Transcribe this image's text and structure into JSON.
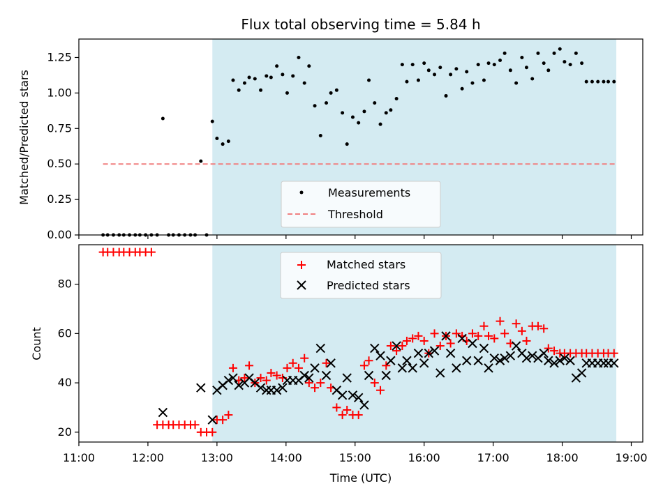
{
  "chart_data": [
    {
      "type": "scatter",
      "title": "Flux total observing time = 5.84 h",
      "xlabel": "",
      "ylabel": "Matched/Predicted stars",
      "xlim": [
        "11:00",
        "19:10"
      ],
      "ylim": [
        0,
        1.38
      ],
      "yticks": [
        "0.00",
        "0.25",
        "0.50",
        "0.75",
        "1.00",
        "1.25"
      ],
      "ytick_values": [
        0,
        0.25,
        0.5,
        0.75,
        1.0,
        1.25
      ],
      "shaded_span": {
        "start": "12:56",
        "end": "18:47",
        "color": "#d4ebf2"
      },
      "legend": {
        "placement": "lower-center",
        "entries": [
          "Measurements",
          "Threshold"
        ]
      },
      "series": [
        {
          "name": "Measurements",
          "marker": "dot",
          "color": "#000000",
          "x": [
            "11:21",
            "11:25",
            "11:30",
            "11:35",
            "11:39",
            "11:44",
            "11:49",
            "11:53",
            "11:58",
            "12:03",
            "12:08",
            "12:13",
            "12:18",
            "12:22",
            "12:27",
            "12:32",
            "12:37",
            "12:41",
            "12:46",
            "12:51",
            "12:56",
            "13:00",
            "13:05",
            "13:10",
            "13:14",
            "13:19",
            "13:24",
            "13:28",
            "13:33",
            "13:38",
            "13:43",
            "13:47",
            "13:52",
            "13:57",
            "14:01",
            "14:06",
            "14:11",
            "14:16",
            "14:20",
            "14:25",
            "14:30",
            "14:35",
            "14:39",
            "14:44",
            "14:49",
            "14:53",
            "14:58",
            "15:03",
            "15:08",
            "15:12",
            "15:17",
            "15:22",
            "15:27",
            "15:31",
            "15:36",
            "15:41",
            "15:45",
            "15:50",
            "15:55",
            "16:00",
            "16:04",
            "16:09",
            "16:14",
            "16:19",
            "16:23",
            "16:28",
            "16:33",
            "16:37",
            "16:42",
            "16:47",
            "16:52",
            "16:56",
            "17:01",
            "17:06",
            "17:10",
            "17:15",
            "17:20",
            "17:25",
            "17:29",
            "17:34",
            "17:39",
            "17:44",
            "17:48",
            "17:53",
            "17:58",
            "18:02",
            "18:07",
            "18:12",
            "18:17",
            "18:21",
            "18:26",
            "18:31",
            "18:36",
            "18:40",
            "18:45"
          ],
          "y": [
            0.0,
            0.0,
            0.0,
            0.0,
            0.0,
            0.0,
            0.0,
            0.0,
            0.0,
            0.0,
            0.0,
            0.82,
            0.0,
            0.0,
            0.0,
            0.0,
            0.0,
            0.0,
            0.52,
            0.0,
            0.8,
            0.68,
            0.64,
            0.66,
            1.09,
            1.02,
            1.07,
            1.11,
            1.1,
            1.02,
            1.12,
            1.11,
            1.19,
            1.13,
            1.0,
            1.12,
            1.25,
            1.07,
            1.19,
            0.91,
            0.7,
            0.93,
            1.0,
            1.02,
            0.86,
            0.64,
            0.83,
            0.79,
            0.87,
            1.09,
            0.93,
            0.78,
            0.86,
            0.88,
            0.96,
            1.2,
            1.08,
            1.2,
            1.09,
            1.21,
            1.16,
            1.13,
            1.18,
            0.98,
            1.13,
            1.17,
            1.03,
            1.15,
            1.07,
            1.2,
            1.09,
            1.21,
            1.2,
            1.23,
            1.28,
            1.16,
            1.07,
            1.25,
            1.18,
            1.1,
            1.28,
            1.21,
            1.16,
            1.28,
            1.31,
            1.22,
            1.2,
            1.28,
            1.21,
            1.08,
            1.08,
            1.08,
            1.08,
            1.08,
            1.08
          ]
        },
        {
          "name": "Threshold",
          "marker": "dashed-line",
          "color": "#f08080",
          "x": [
            "11:21",
            "18:47"
          ],
          "y": [
            0.5,
            0.5
          ]
        }
      ]
    },
    {
      "type": "scatter",
      "title": "",
      "xlabel": "Time (UTC)",
      "ylabel": "Count",
      "xlim": [
        "11:00",
        "19:10"
      ],
      "ylim": [
        16,
        96
      ],
      "xticks": [
        "11:00",
        "12:00",
        "13:00",
        "14:00",
        "15:00",
        "16:00",
        "17:00",
        "18:00",
        "19:00"
      ],
      "yticks": [
        "20",
        "40",
        "60",
        "80"
      ],
      "ytick_values": [
        20,
        40,
        60,
        80
      ],
      "shaded_span": {
        "start": "12:56",
        "end": "18:47",
        "color": "#d4ebf2"
      },
      "legend": {
        "placement": "upper-center",
        "entries": [
          "Matched stars",
          "Predicted stars"
        ]
      },
      "series": [
        {
          "name": "Matched stars",
          "marker": "plus",
          "color": "#ff0000",
          "x": [
            "11:21",
            "11:25",
            "11:30",
            "11:35",
            "11:39",
            "11:44",
            "11:49",
            "11:53",
            "11:58",
            "12:03",
            "12:08",
            "12:13",
            "12:18",
            "12:22",
            "12:27",
            "12:32",
            "12:37",
            "12:41",
            "12:46",
            "12:51",
            "12:56",
            "13:00",
            "13:05",
            "13:10",
            "13:14",
            "13:19",
            "13:24",
            "13:28",
            "13:33",
            "13:38",
            "13:43",
            "13:47",
            "13:52",
            "13:57",
            "14:01",
            "14:06",
            "14:11",
            "14:16",
            "14:20",
            "14:25",
            "14:30",
            "14:35",
            "14:39",
            "14:44",
            "14:49",
            "14:53",
            "14:58",
            "15:03",
            "15:08",
            "15:12",
            "15:17",
            "15:22",
            "15:27",
            "15:31",
            "15:36",
            "15:41",
            "15:45",
            "15:50",
            "15:55",
            "16:00",
            "16:04",
            "16:09",
            "16:14",
            "16:19",
            "16:23",
            "16:28",
            "16:33",
            "16:37",
            "16:42",
            "16:47",
            "16:52",
            "16:56",
            "17:01",
            "17:06",
            "17:10",
            "17:15",
            "17:20",
            "17:25",
            "17:29",
            "17:34",
            "17:39",
            "17:44",
            "17:48",
            "17:53",
            "17:58",
            "18:02",
            "18:07",
            "18:12",
            "18:17",
            "18:21",
            "18:26",
            "18:31",
            "18:36",
            "18:40",
            "18:45"
          ],
          "y": [
            93,
            93,
            93,
            93,
            93,
            93,
            93,
            93,
            93,
            93,
            23,
            23,
            23,
            23,
            23,
            23,
            23,
            23,
            20,
            20,
            20,
            25,
            25,
            27,
            46,
            41,
            42,
            47,
            40,
            42,
            41,
            44,
            43,
            42,
            46,
            48,
            46,
            50,
            40,
            38,
            40,
            48,
            38,
            30,
            27,
            29,
            27,
            27,
            47,
            49,
            40,
            37,
            47,
            55,
            53,
            55,
            57,
            58,
            59,
            57,
            52,
            60,
            55,
            59,
            56,
            60,
            59,
            57,
            60,
            59,
            63,
            59,
            58,
            65,
            60,
            56,
            64,
            61,
            57,
            63,
            63,
            62,
            54,
            53,
            52,
            52,
            52,
            52,
            52,
            52,
            52,
            52,
            52,
            52,
            52
          ]
        },
        {
          "name": "Predicted stars",
          "marker": "x",
          "color": "#000000",
          "x": [
            "12:13",
            "12:46",
            "12:56",
            "13:00",
            "13:05",
            "13:10",
            "13:14",
            "13:19",
            "13:24",
            "13:28",
            "13:33",
            "13:38",
            "13:43",
            "13:47",
            "13:52",
            "13:57",
            "14:01",
            "14:06",
            "14:11",
            "14:16",
            "14:20",
            "14:25",
            "14:30",
            "14:35",
            "14:39",
            "14:44",
            "14:49",
            "14:53",
            "14:58",
            "15:03",
            "15:08",
            "15:12",
            "15:17",
            "15:22",
            "15:27",
            "15:31",
            "15:36",
            "15:41",
            "15:45",
            "15:50",
            "15:55",
            "16:00",
            "16:04",
            "16:09",
            "16:14",
            "16:19",
            "16:23",
            "16:28",
            "16:33",
            "16:37",
            "16:42",
            "16:47",
            "16:52",
            "16:56",
            "17:01",
            "17:06",
            "17:10",
            "17:15",
            "17:20",
            "17:25",
            "17:29",
            "17:34",
            "17:39",
            "17:44",
            "17:48",
            "17:53",
            "17:58",
            "18:02",
            "18:07",
            "18:12",
            "18:17",
            "18:21",
            "18:26",
            "18:31",
            "18:36",
            "18:40",
            "18:45"
          ],
          "y": [
            28,
            38,
            25,
            37,
            39,
            41,
            42,
            39,
            40,
            42,
            40,
            38,
            37,
            37,
            37,
            38,
            41,
            41,
            41,
            43,
            42,
            46,
            54,
            43,
            48,
            37,
            35,
            42,
            35,
            34,
            31,
            43,
            54,
            51,
            43,
            49,
            55,
            46,
            49,
            46,
            52,
            48,
            52,
            53,
            44,
            59,
            52,
            46,
            58,
            49,
            56,
            49,
            54,
            46,
            50,
            49,
            50,
            51,
            55,
            52,
            50,
            51,
            50,
            52,
            49,
            48,
            49,
            50,
            49,
            42,
            44,
            48,
            48,
            48,
            48,
            48,
            48
          ]
        }
      ]
    }
  ]
}
